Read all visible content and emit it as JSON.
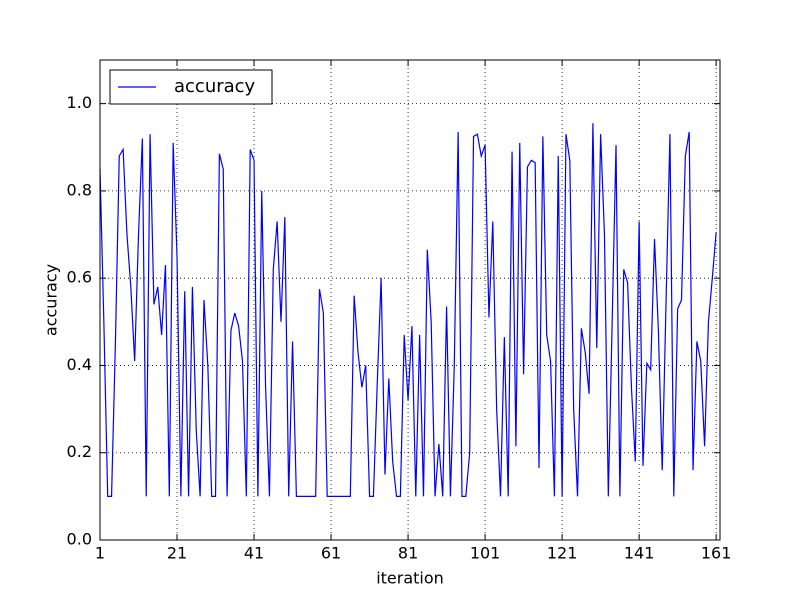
{
  "chart_data": {
    "type": "line",
    "x_label": "iteration",
    "y_label": "accuracy",
    "x": [
      1,
      2,
      3,
      4,
      5,
      6,
      7,
      8,
      9,
      10,
      11,
      12,
      13,
      14,
      15,
      16,
      17,
      18,
      19,
      20,
      21,
      22,
      23,
      24,
      25,
      26,
      27,
      28,
      29,
      30,
      31,
      32,
      33,
      34,
      35,
      36,
      37,
      38,
      39,
      40,
      41,
      42,
      43,
      44,
      45,
      46,
      47,
      48,
      49,
      50,
      51,
      52,
      53,
      54,
      55,
      56,
      57,
      58,
      59,
      60,
      61,
      62,
      63,
      64,
      65,
      66,
      67,
      68,
      69,
      70,
      71,
      72,
      73,
      74,
      75,
      76,
      77,
      78,
      79,
      80,
      81,
      82,
      83,
      84,
      85,
      86,
      87,
      88,
      89,
      90,
      91,
      92,
      93,
      94,
      95,
      96,
      97,
      98,
      99,
      100,
      101,
      102,
      103,
      104,
      105,
      106,
      107,
      108,
      109,
      110,
      111,
      112,
      113,
      114,
      115,
      116,
      117,
      118,
      119,
      120,
      121,
      122,
      123,
      124,
      125,
      126,
      127,
      128,
      129,
      130,
      131,
      132,
      133,
      134,
      135,
      136,
      137,
      138,
      139,
      140,
      141,
      142,
      143,
      144,
      145,
      146,
      147,
      148,
      149,
      150,
      151,
      152,
      153,
      154,
      155,
      156,
      157,
      158,
      159,
      160,
      161
    ],
    "series": [
      {
        "name": "accuracy",
        "color": "#0000ff",
        "values": [
          0.85,
          0.5,
          0.1,
          0.1,
          0.45,
          0.88,
          0.895,
          0.7,
          0.58,
          0.41,
          0.7,
          0.92,
          0.1,
          0.93,
          0.54,
          0.58,
          0.47,
          0.63,
          0.1,
          0.91,
          0.65,
          0.1,
          0.57,
          0.1,
          0.58,
          0.25,
          0.1,
          0.55,
          0.4,
          0.1,
          0.1,
          0.885,
          0.85,
          0.1,
          0.48,
          0.52,
          0.49,
          0.41,
          0.1,
          0.895,
          0.87,
          0.1,
          0.8,
          0.35,
          0.1,
          0.62,
          0.73,
          0.5,
          0.74,
          0.1,
          0.455,
          0.1,
          0.1,
          0.1,
          0.1,
          0.1,
          0.1,
          0.575,
          0.52,
          0.1,
          0.1,
          0.1,
          0.1,
          0.1,
          0.1,
          0.1,
          0.56,
          0.43,
          0.35,
          0.4,
          0.1,
          0.1,
          0.36,
          0.6,
          0.15,
          0.37,
          0.18,
          0.1,
          0.1,
          0.47,
          0.32,
          0.49,
          0.1,
          0.47,
          0.1,
          0.665,
          0.5,
          0.1,
          0.22,
          0.1,
          0.535,
          0.1,
          0.4,
          0.935,
          0.1,
          0.1,
          0.2,
          0.925,
          0.93,
          0.88,
          0.905,
          0.51,
          0.73,
          0.3,
          0.1,
          0.465,
          0.1,
          0.89,
          0.215,
          0.91,
          0.38,
          0.855,
          0.87,
          0.865,
          0.165,
          0.925,
          0.47,
          0.41,
          0.1,
          0.88,
          0.1,
          0.93,
          0.87,
          0.3,
          0.1,
          0.485,
          0.43,
          0.335,
          0.955,
          0.44,
          0.93,
          0.7,
          0.1,
          0.5,
          0.905,
          0.1,
          0.62,
          0.59,
          0.35,
          0.18,
          0.73,
          0.17,
          0.405,
          0.39,
          0.69,
          0.48,
          0.16,
          0.55,
          0.93,
          0.1,
          0.53,
          0.55,
          0.88,
          0.935,
          0.16,
          0.455,
          0.41,
          0.215,
          0.5,
          0.6,
          0.705
        ]
      }
    ],
    "xlim": [
      1,
      162
    ],
    "xticks": [
      1,
      21,
      41,
      61,
      81,
      101,
      121,
      141,
      161
    ],
    "ylim": [
      0,
      1.1
    ],
    "yticks": [
      {
        "value": 0,
        "label": "0.0"
      },
      {
        "value": 0.2,
        "label": "0.2"
      },
      {
        "value": 0.4,
        "label": "0.4"
      },
      {
        "value": 0.6,
        "label": "0.6"
      },
      {
        "value": 0.8,
        "label": "0.8"
      },
      {
        "value": 1.0,
        "label": "1.0"
      }
    ],
    "grid": true,
    "legend": "upper-left"
  }
}
